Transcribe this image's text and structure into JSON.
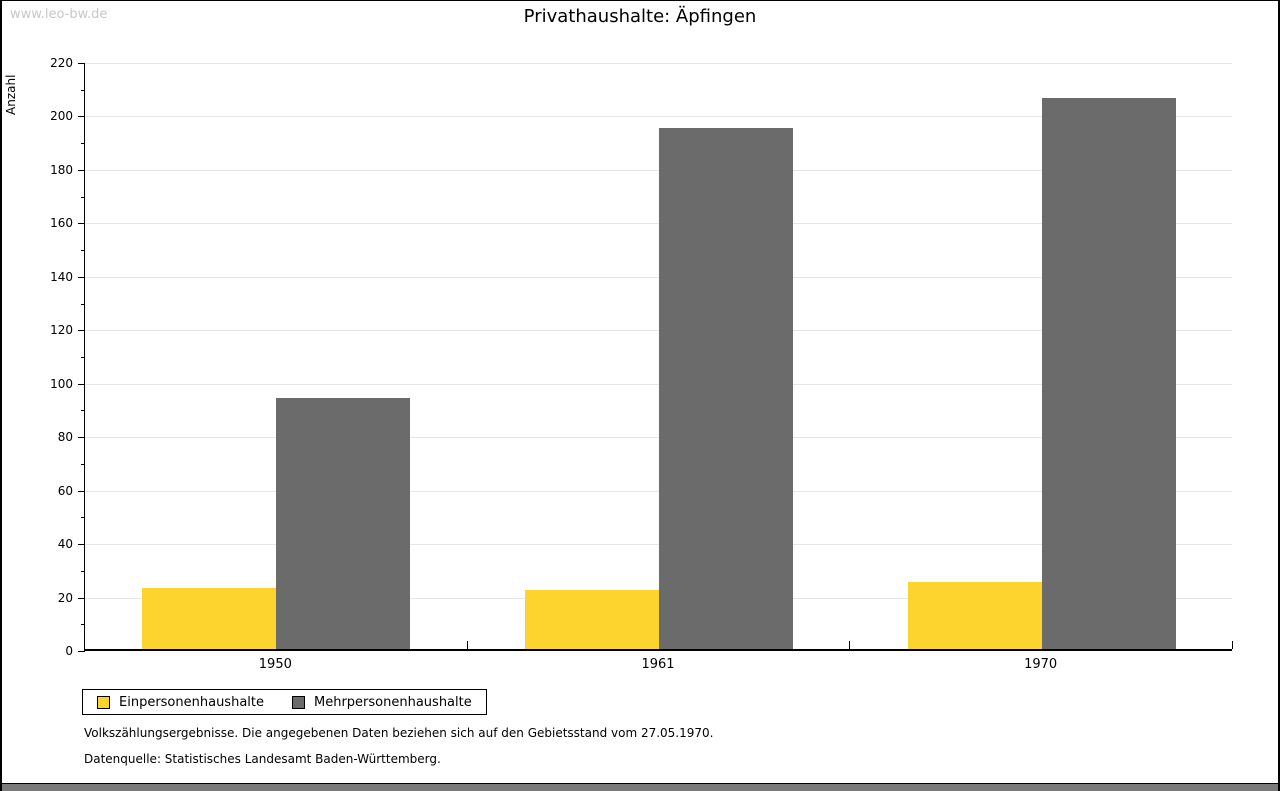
{
  "watermark": "www.leo-bw.de",
  "title": "Privathaushalte: Äpfingen",
  "footer": {
    "line1": "Volkszählungsergebnisse. Die angegebenen Daten beziehen sich auf den Gebietsstand vom 27.05.1970.",
    "line2": "Datenquelle: Statistisches Landesamt Baden-Württemberg."
  },
  "colors": {
    "bar_yellow": "#fdd32d",
    "bar_gray": "#6b6b6b",
    "gridline": "#e7e7e7",
    "watermark": "#c8c8c8",
    "bottom_strip": "#7a7a7a",
    "axis": "#000000"
  },
  "chart_data": {
    "type": "bar",
    "title": "Privathaushalte: Äpfingen",
    "ylabel": "Anzahl",
    "xlabel": "",
    "categories": [
      "1950",
      "1961",
      "1970"
    ],
    "series": [
      {
        "name": "Einpersonenhaushalte",
        "color": "#fdd32d",
        "values": [
          23,
          22,
          25
        ]
      },
      {
        "name": "Mehrpersonenhaushalte",
        "color": "#6b6b6b",
        "values": [
          94,
          195,
          206
        ]
      }
    ],
    "ylim": [
      0,
      220
    ],
    "ytick_step": 20,
    "ytick_minor_step": 10,
    "grid": true,
    "legend_position": "bottom-left"
  }
}
